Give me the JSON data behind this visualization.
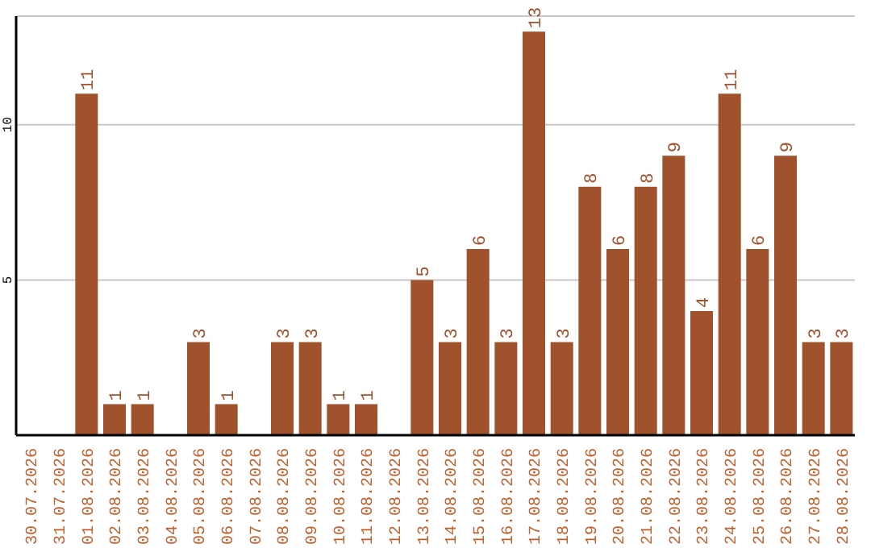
{
  "chart_data": {
    "type": "bar",
    "categories": [
      "30.07.2026",
      "31.07.2026",
      "01.08.2026",
      "02.08.2026",
      "03.08.2026",
      "04.08.2026",
      "05.08.2026",
      "06.08.2026",
      "07.08.2026",
      "08.08.2026",
      "09.08.2026",
      "10.08.2026",
      "11.08.2026",
      "12.08.2026",
      "13.08.2026",
      "14.08.2026",
      "15.08.2026",
      "16.08.2026",
      "17.08.2026",
      "18.08.2026",
      "19.08.2026",
      "20.08.2026",
      "21.08.2026",
      "22.08.2026",
      "23.08.2026",
      "24.08.2026",
      "25.08.2026",
      "26.08.2026",
      "27.08.2026",
      "28.08.2026"
    ],
    "values": [
      0,
      0,
      11,
      1,
      1,
      0,
      3,
      1,
      0,
      3,
      3,
      1,
      1,
      0,
      5,
      3,
      6,
      3,
      13,
      3,
      8,
      6,
      8,
      9,
      4,
      11,
      6,
      9,
      3,
      3
    ],
    "value_labels": [
      null,
      null,
      "11",
      "1",
      "1",
      null,
      "3",
      "1",
      null,
      "3",
      "3",
      "1",
      "1",
      null,
      "5",
      "3",
      "6",
      "3",
      "13",
      "3",
      "8",
      "6",
      "8",
      "9",
      "4",
      "11",
      "6",
      "9",
      "3",
      "3"
    ],
    "color": "#a0522d",
    "ylim": [
      0,
      13.5
    ],
    "yticks": [
      5,
      10
    ],
    "grid": "y"
  }
}
